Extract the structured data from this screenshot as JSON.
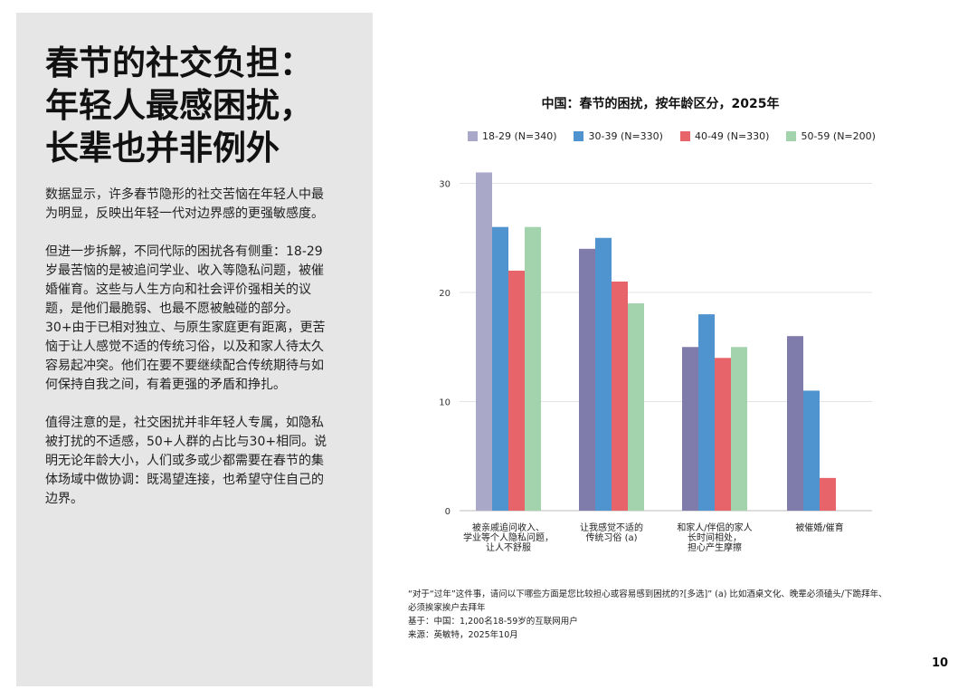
{
  "headline": [
    "春节的社交负担：",
    "年轻人最感困扰，",
    "长辈也并非例外"
  ],
  "paragraphs": [
    "数据显示，许多春节隐形的社交苦恼在年轻人中最为明显，反映出年轻一代对边界感的更强敏感度。",
    "但进一步拆解，不同代际的困扰各有侧重：18-29岁最苦恼的是被追问学业、收入等隐私问题，被催婚催育。这些与人生方向和社会评价强相关的议题，是他们最脆弱、也最不愿被触碰的部分。30+由于已相对独立、与原生家庭更有距离，更苦恼于让人感觉不适的传统习俗，以及和家人待太久容易起冲突。他们在要不要继续配合传统期待与如何保持自我之间，有着更强的矛盾和挣扎。",
    "值得注意的是，社交困扰并非年轻人专属，如隐私被打扰的不适感，50+人群的占比与30+相同。说明无论年龄大小，人们或多或少都需要在春节的集体场域中做协调：既渴望连接，也希望守住自己的边界。"
  ],
  "chart_data": {
    "type": "bar",
    "title": "中国：春节的困扰，按年龄区分，2025年",
    "categories": [
      [
        "被亲戚追问收入、",
        "学业等个人隐私问题，",
        "让人不舒服"
      ],
      [
        "让我感觉不适的",
        "传统习俗 (a)"
      ],
      [
        "和家人/伴侣的家人",
        "长时间相处，",
        "担心产生摩擦"
      ],
      [
        "被催婚/催育"
      ]
    ],
    "series": [
      {
        "name": "18-29 (N=340)",
        "color": "#aaa8c9",
        "values": [
          31,
          24,
          15,
          16
        ]
      },
      {
        "name": "30-39 (N=330)",
        "color": "#4f93cf",
        "values": [
          26,
          25,
          18,
          11
        ]
      },
      {
        "name": "40-49 (N=330)",
        "color": "#e8646b",
        "values": [
          22,
          21,
          14,
          3
        ]
      },
      {
        "name": "50-59 (N=200)",
        "color": "#a3d3ad",
        "values": [
          26,
          19,
          15,
          null
        ]
      }
    ],
    "first_series_other_color": "#7f7cab",
    "yticks": [
      0,
      10,
      20,
      30
    ],
    "ylim": [
      0,
      32
    ],
    "grid": true,
    "legend_position": "top"
  },
  "footnotes": [
    "“对于“过年”这件事，请问以下哪些方面是您比较担心或容易感到困扰的?[多选]” (a) 比如酒桌文化、晚辈必须磕头/下跪拜年、",
    "必须挨家挨户去拜年",
    "基于：中国：1,200名18-59岁的互联网用户",
    "来源：英敏特，2025年10月"
  ],
  "page_number": "10"
}
